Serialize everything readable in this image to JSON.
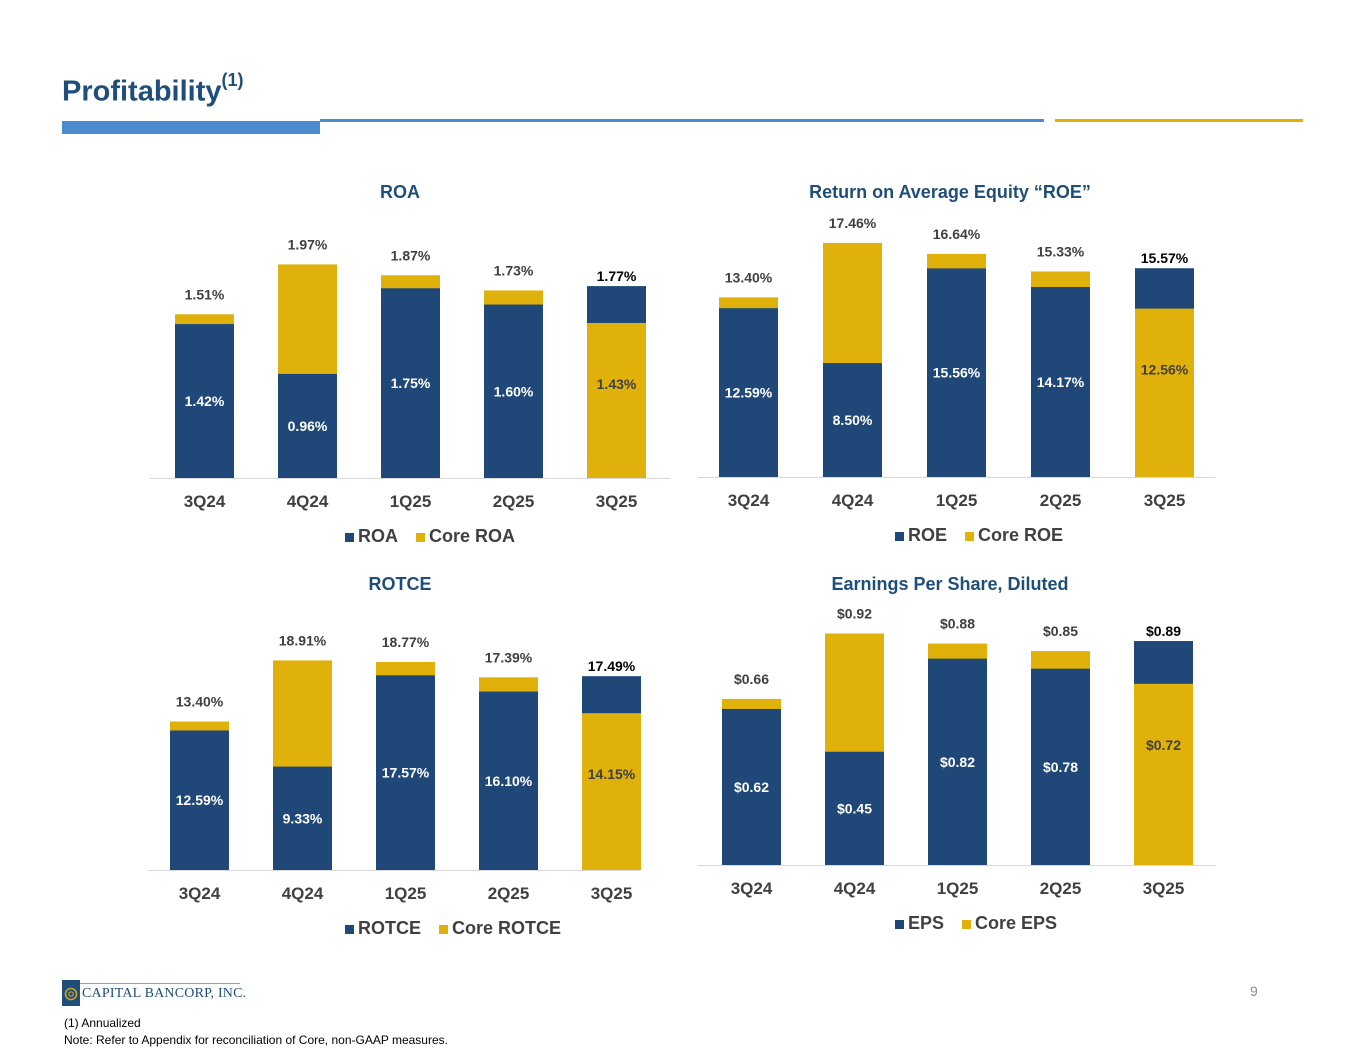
{
  "page": {
    "title": "Profitability",
    "title_sup": "(1)",
    "page_number": "9",
    "logo_text": "CAPITAL BANCORP, INC.",
    "footnote_1": "(1)     Annualized",
    "footnote_2": "Note: Refer to Appendix for reconciliation of Core, non-GAAP measures."
  },
  "colors": {
    "primary": "#1f4778",
    "core": "#e0b10a",
    "title": "#1f4e79"
  },
  "chart_data": [
    {
      "type": "bar",
      "title": "ROA",
      "categories": [
        "3Q24",
        "4Q24",
        "1Q25",
        "2Q25",
        "3Q25"
      ],
      "series": [
        {
          "name": "ROA",
          "values": [
            1.42,
            0.96,
            1.75,
            1.6,
            1.77
          ],
          "labels": [
            "1.42%",
            "0.96%",
            "1.75%",
            "1.60%",
            "1.77%"
          ]
        },
        {
          "name": "Core ROA",
          "values": [
            1.51,
            1.97,
            1.87,
            1.73,
            1.43
          ],
          "labels": [
            "1.51%",
            "1.97%",
            "1.87%",
            "1.73%",
            "1.43%"
          ]
        }
      ],
      "ylim": [
        0,
        2.02
      ],
      "legend": "bottom"
    },
    {
      "type": "bar",
      "title": "Return on Average Equity “ROE”",
      "categories": [
        "3Q24",
        "4Q24",
        "1Q25",
        "2Q25",
        "3Q25"
      ],
      "series": [
        {
          "name": "ROE",
          "values": [
            12.59,
            8.5,
            15.56,
            14.17,
            15.57
          ],
          "labels": [
            "12.59%",
            "8.50%",
            "15.56%",
            "14.17%",
            "15.57%"
          ]
        },
        {
          "name": "Core ROE",
          "values": [
            13.4,
            17.46,
            16.64,
            15.33,
            12.56
          ],
          "labels": [
            "13.40%",
            "17.46%",
            "16.64%",
            "15.33%",
            "12.56%"
          ]
        }
      ],
      "ylim": [
        0,
        17.9
      ],
      "legend": "bottom"
    },
    {
      "type": "bar",
      "title": "ROTCE",
      "categories": [
        "3Q24",
        "4Q24",
        "1Q25",
        "2Q25",
        "3Q25"
      ],
      "series": [
        {
          "name": "ROTCE",
          "values": [
            12.59,
            9.33,
            17.57,
            16.1,
            17.49
          ],
          "labels": [
            "12.59%",
            "9.33%",
            "17.57%",
            "16.10%",
            "17.49%"
          ]
        },
        {
          "name": "Core ROTCE",
          "values": [
            13.4,
            18.91,
            18.77,
            17.39,
            14.15
          ],
          "labels": [
            "13.40%",
            "18.91%",
            "18.77%",
            "17.39%",
            "14.15%"
          ]
        }
      ],
      "ylim": [
        0,
        19.4
      ],
      "legend": "bottom"
    },
    {
      "type": "bar",
      "title": "Earnings Per Share, Diluted",
      "categories": [
        "3Q24",
        "4Q24",
        "1Q25",
        "2Q25",
        "3Q25"
      ],
      "series": [
        {
          "name": "EPS",
          "values": [
            0.62,
            0.45,
            0.82,
            0.78,
            0.89
          ],
          "labels": [
            "$0.62",
            "$0.45",
            "$0.82",
            "$0.78",
            "$0.89"
          ]
        },
        {
          "name": "Core EPS",
          "values": [
            0.66,
            0.92,
            0.88,
            0.85,
            0.72
          ],
          "labels": [
            "$0.66",
            "$0.92",
            "$0.88",
            "$0.85",
            "$0.72"
          ]
        }
      ],
      "ylim": [
        0,
        0.91
      ],
      "legend": "bottom"
    }
  ]
}
